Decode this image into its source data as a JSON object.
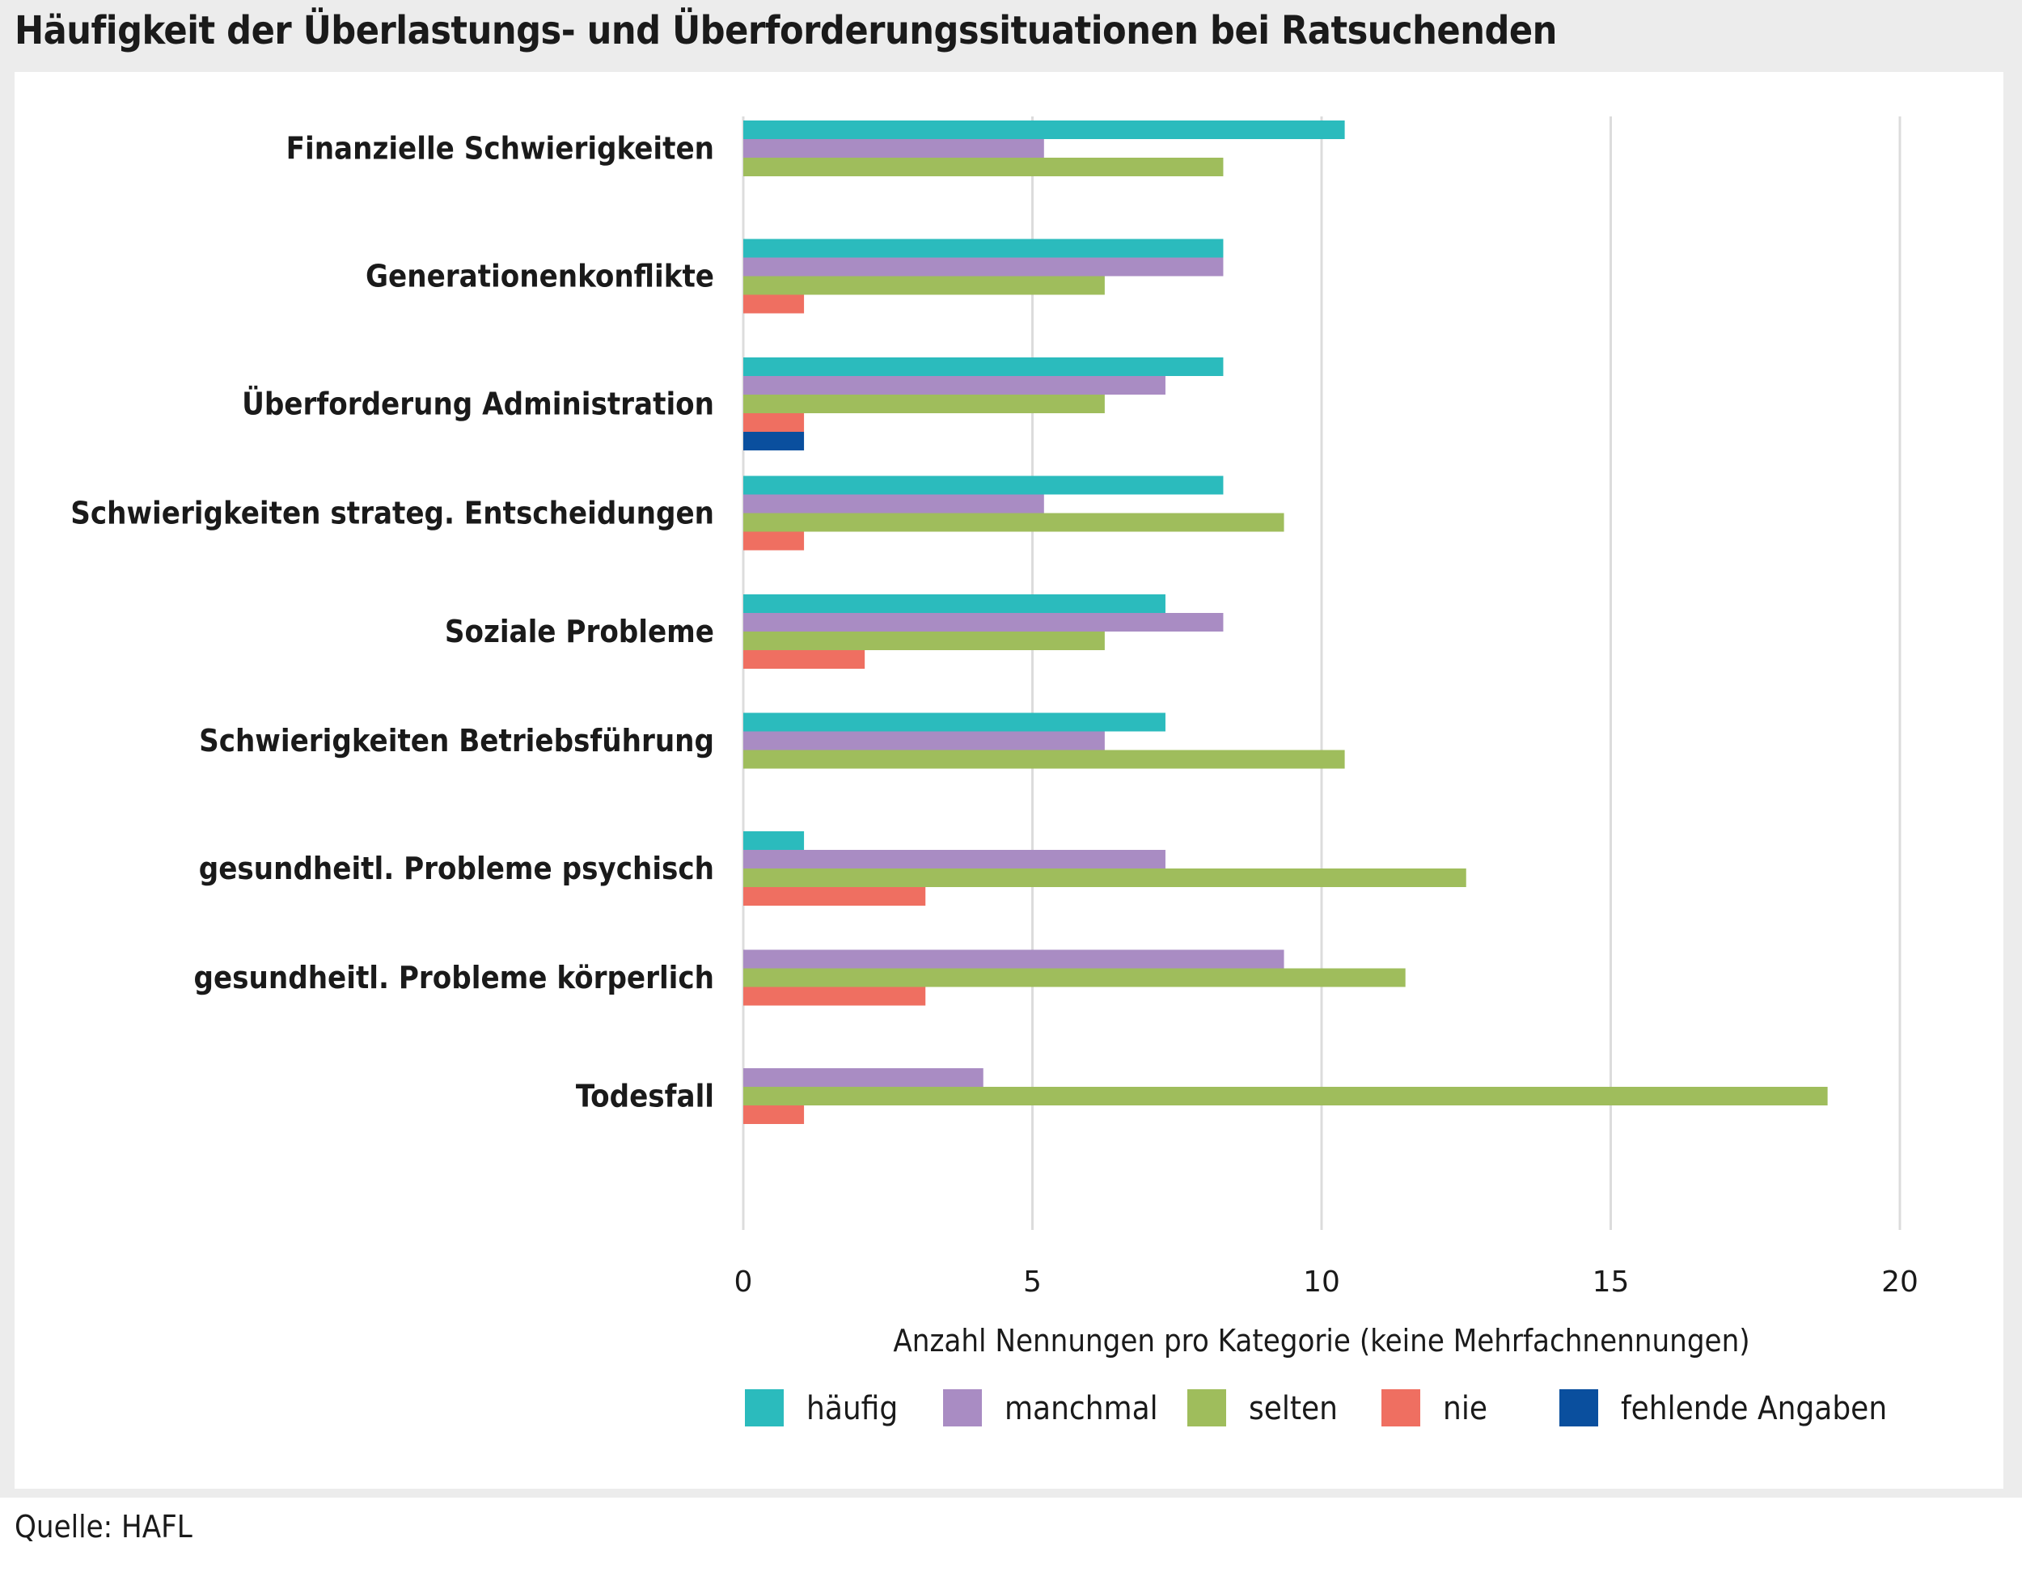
{
  "title": "Häufigkeit der Überlastungs- und Überforderungssituationen bei Ratsuchenden",
  "source": "Quelle: HAFL",
  "chart_data": {
    "type": "bar",
    "orientation": "horizontal",
    "categories": [
      "Finanzielle Schwierigkeiten",
      "Generationenkonflikte",
      "Überforderung Administration",
      "Schwierigkeiten strateg. Entscheidungen",
      "Soziale Probleme",
      "Schwierigkeiten Betriebsführung",
      "gesundheitl. Probleme psychisch",
      "gesundheitl. Probleme körperlich",
      "Todesfall"
    ],
    "series": [
      {
        "name": "häufig",
        "color": "#2bbbbd",
        "values": [
          10.4,
          8.3,
          8.3,
          8.3,
          7.3,
          7.3,
          1.05,
          0,
          0
        ]
      },
      {
        "name": "manchmal",
        "color": "#a98cc3",
        "values": [
          5.2,
          8.3,
          7.3,
          5.2,
          8.3,
          6.25,
          7.3,
          9.35,
          4.15
        ]
      },
      {
        "name": "selten",
        "color": "#9fbd5c",
        "values": [
          8.3,
          6.25,
          6.25,
          9.35,
          6.25,
          10.4,
          12.5,
          11.45,
          18.75
        ]
      },
      {
        "name": "nie",
        "color": "#ef6f61",
        "values": [
          0,
          1.05,
          1.05,
          1.05,
          2.1,
          0,
          3.15,
          3.15,
          1.05
        ]
      },
      {
        "name": "fehlende Angaben",
        "color": "#0a4f9e",
        "values": [
          0,
          0,
          1.05,
          0,
          0,
          0,
          0,
          0,
          0
        ]
      }
    ],
    "xlabel": "Anzahl Nennungen pro Kategorie (keine Mehrfachnennungen)",
    "ylabel": "",
    "xlim": [
      0,
      20
    ],
    "xticks": [
      0,
      5,
      10,
      15,
      20
    ],
    "grid": true,
    "legend_position": "bottom"
  }
}
